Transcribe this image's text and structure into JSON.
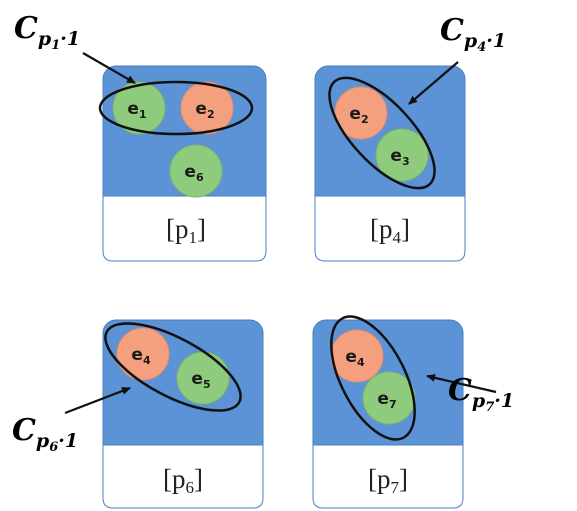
{
  "colors": {
    "panel_blue": "#5b93d6",
    "panel_border": "#4a7fc2",
    "label_box": "#ffffff",
    "node_green": "#8fcb7d",
    "node_green_border": "#7ab868",
    "node_orange": "#f4a07f",
    "node_orange_border": "#e58c6a",
    "outline": "#111111"
  },
  "panels": [
    {
      "id": "p1",
      "label": {
        "open": "[p",
        "sub": "1",
        "close": "]"
      },
      "nodes": [
        {
          "base": "e",
          "sub": "1",
          "color": "green"
        },
        {
          "base": "e",
          "sub": "2",
          "color": "orange"
        },
        {
          "base": "e",
          "sub": "6",
          "color": "green"
        }
      ],
      "cluster": {
        "base": "C",
        "sub": "p",
        "subsub": "1",
        "suffix": "·1",
        "members": [
          "e1",
          "e2"
        ]
      }
    },
    {
      "id": "p4",
      "label": {
        "open": "[p",
        "sub": "4",
        "close": "]"
      },
      "nodes": [
        {
          "base": "e",
          "sub": "2",
          "color": "orange"
        },
        {
          "base": "e",
          "sub": "3",
          "color": "green"
        }
      ],
      "cluster": {
        "base": "C",
        "sub": "p",
        "subsub": "4",
        "suffix": "·1",
        "members": [
          "e2",
          "e3"
        ]
      }
    },
    {
      "id": "p6",
      "label": {
        "open": "[p",
        "sub": "6",
        "close": "]"
      },
      "nodes": [
        {
          "base": "e",
          "sub": "4",
          "color": "orange"
        },
        {
          "base": "e",
          "sub": "5",
          "color": "green"
        }
      ],
      "cluster": {
        "base": "C",
        "sub": "p",
        "subsub": "6",
        "suffix": "·1",
        "members": [
          "e4",
          "e5"
        ]
      }
    },
    {
      "id": "p7",
      "label": {
        "open": "[p",
        "sub": "7",
        "close": "]"
      },
      "nodes": [
        {
          "base": "e",
          "sub": "4",
          "color": "orange"
        },
        {
          "base": "e",
          "sub": "7",
          "color": "green"
        }
      ],
      "cluster": {
        "base": "C",
        "sub": "p",
        "subsub": "7",
        "suffix": "·1",
        "members": [
          "e4",
          "e7"
        ]
      }
    }
  ]
}
